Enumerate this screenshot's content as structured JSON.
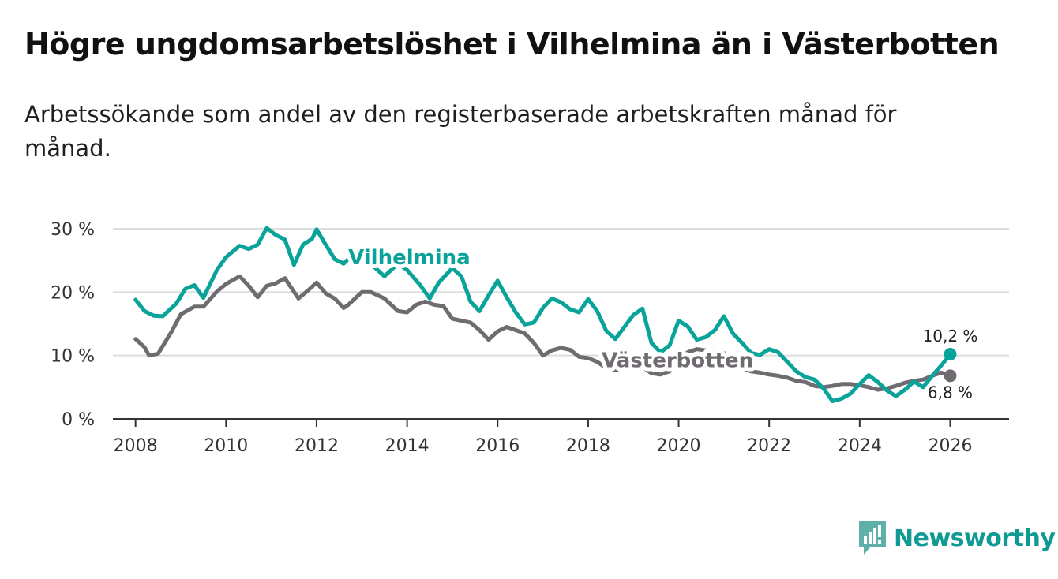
{
  "header": {
    "title": "Högre ungdomsarbetslöshet i Vilhelmina än i Västerbotten",
    "subtitle": "Arbetssökande som andel av den registerbaserade arbetskraften månad för månad."
  },
  "brand": {
    "name": "Newsworthy",
    "icon": "bar-chart-icon"
  },
  "colors": {
    "vilhelmina": "#0aa399",
    "vasterbotten": "#6f6b70",
    "grid": "#dddddd",
    "axis": "#333333"
  },
  "chart_data": {
    "type": "line",
    "title": "Högre ungdomsarbetslöshet i Vilhelmina än i Västerbotten",
    "xlabel": "",
    "ylabel": "",
    "xlim": [
      2007.5,
      2027.3
    ],
    "ylim": [
      0,
      30
    ],
    "x_ticks": [
      2008,
      2010,
      2012,
      2014,
      2016,
      2018,
      2020,
      2022,
      2024,
      2026
    ],
    "x_tick_labels": [
      "2008",
      "2010",
      "2012",
      "2014",
      "2016",
      "2018",
      "2020",
      "2022",
      "2024",
      "2026"
    ],
    "y_ticks": [
      0,
      10,
      20,
      30
    ],
    "y_tick_labels": [
      "0 %",
      "10 %",
      "20 %",
      "30 %"
    ],
    "grid": true,
    "series": [
      {
        "name": "Vilhelmina",
        "label": "Vilhelmina",
        "end_label": "10,2 %",
        "x": [
          2008.0,
          2008.2,
          2008.4,
          2008.6,
          2008.9,
          2009.1,
          2009.3,
          2009.5,
          2009.8,
          2010.0,
          2010.3,
          2010.5,
          2010.7,
          2010.9,
          2011.1,
          2011.3,
          2011.5,
          2011.7,
          2011.9,
          2012.0,
          2012.2,
          2012.4,
          2012.6,
          2012.7,
          2013.0,
          2013.3,
          2013.5,
          2013.8,
          2014.0,
          2014.3,
          2014.5,
          2014.7,
          2015.0,
          2015.2,
          2015.4,
          2015.6,
          2015.8,
          2016.0,
          2016.2,
          2016.4,
          2016.6,
          2016.8,
          2017.0,
          2017.2,
          2017.4,
          2017.6,
          2017.8,
          2018.0,
          2018.2,
          2018.4,
          2018.6,
          2018.8,
          2019.0,
          2019.2,
          2019.4,
          2019.6,
          2019.8,
          2020.0,
          2020.2,
          2020.4,
          2020.6,
          2020.8,
          2021.0,
          2021.2,
          2021.4,
          2021.6,
          2021.8,
          2022.0,
          2022.2,
          2022.4,
          2022.6,
          2022.8,
          2023.0,
          2023.2,
          2023.4,
          2023.6,
          2023.8,
          2024.0,
          2024.2,
          2024.4,
          2024.6,
          2024.8,
          2025.0,
          2025.2,
          2025.4,
          2025.6,
          2025.8,
          2026.0
        ],
        "values": [
          18.8,
          17.0,
          16.3,
          16.2,
          18.2,
          20.5,
          21.1,
          19.1,
          23.5,
          25.5,
          27.3,
          26.8,
          27.5,
          30.1,
          29.0,
          28.3,
          24.3,
          27.5,
          28.4,
          29.9,
          27.5,
          25.2,
          24.5,
          25.2,
          26.0,
          23.8,
          22.5,
          24.5,
          23.5,
          21.0,
          19.0,
          21.5,
          23.8,
          22.5,
          18.5,
          17.0,
          19.5,
          21.8,
          19.2,
          16.8,
          14.9,
          15.2,
          17.5,
          19.0,
          18.4,
          17.3,
          16.8,
          18.9,
          17.0,
          13.9,
          12.6,
          14.5,
          16.4,
          17.4,
          12.0,
          10.5,
          11.6,
          15.5,
          14.6,
          12.5,
          12.9,
          14.0,
          16.2,
          13.5,
          12.0,
          10.4,
          10.1,
          11.0,
          10.5,
          9.0,
          7.5,
          6.6,
          6.2,
          4.8,
          2.8,
          3.2,
          4.0,
          5.5,
          6.9,
          5.8,
          4.5,
          3.6,
          4.6,
          5.9,
          5.0,
          6.8,
          8.4,
          10.2
        ]
      },
      {
        "name": "Västerbotten",
        "label": "Västerbotten",
        "end_label": "6,8 %",
        "x": [
          2008.0,
          2008.2,
          2008.3,
          2008.5,
          2008.8,
          2009.0,
          2009.3,
          2009.5,
          2009.8,
          2010.0,
          2010.3,
          2010.5,
          2010.7,
          2010.9,
          2011.1,
          2011.3,
          2011.6,
          2011.8,
          2012.0,
          2012.2,
          2012.4,
          2012.6,
          2012.7,
          2013.0,
          2013.2,
          2013.5,
          2013.8,
          2014.0,
          2014.2,
          2014.4,
          2014.6,
          2014.8,
          2015.0,
          2015.2,
          2015.4,
          2015.6,
          2015.8,
          2016.0,
          2016.2,
          2016.4,
          2016.6,
          2016.8,
          2017.0,
          2017.2,
          2017.4,
          2017.6,
          2017.8,
          2018.0,
          2018.2,
          2018.4,
          2018.6,
          2018.8,
          2019.0,
          2019.2,
          2019.4,
          2019.6,
          2019.8,
          2020.0,
          2020.2,
          2020.4,
          2020.6,
          2020.8,
          2021.0,
          2021.2,
          2021.4,
          2021.6,
          2021.8,
          2022.0,
          2022.2,
          2022.4,
          2022.6,
          2022.8,
          2023.0,
          2023.2,
          2023.4,
          2023.6,
          2023.8,
          2024.0,
          2024.2,
          2024.4,
          2024.6,
          2024.8,
          2025.0,
          2025.2,
          2025.4,
          2025.6,
          2025.8,
          2026.0
        ],
        "values": [
          12.6,
          11.3,
          10.0,
          10.3,
          13.8,
          16.5,
          17.7,
          17.7,
          20.1,
          21.3,
          22.5,
          21.0,
          19.2,
          21.0,
          21.4,
          22.2,
          19.0,
          20.2,
          21.5,
          19.8,
          19.0,
          17.5,
          18.0,
          20.0,
          20.0,
          19.0,
          17.0,
          16.8,
          18.0,
          18.5,
          18.0,
          17.8,
          15.8,
          15.5,
          15.2,
          14.0,
          12.5,
          13.8,
          14.5,
          14.0,
          13.5,
          12.0,
          10.0,
          10.8,
          11.2,
          10.9,
          9.8,
          9.6,
          9.0,
          8.0,
          7.7,
          8.0,
          8.5,
          8.2,
          7.2,
          7.0,
          7.5,
          9.5,
          10.5,
          11.0,
          10.8,
          10.5,
          10.4,
          9.0,
          8.0,
          7.5,
          7.3,
          7.0,
          6.8,
          6.5,
          6.0,
          5.8,
          5.2,
          5.0,
          5.2,
          5.5,
          5.5,
          5.3,
          5.0,
          4.6,
          4.8,
          5.2,
          5.7,
          6.0,
          6.2,
          6.8,
          7.3,
          6.8
        ]
      }
    ]
  }
}
